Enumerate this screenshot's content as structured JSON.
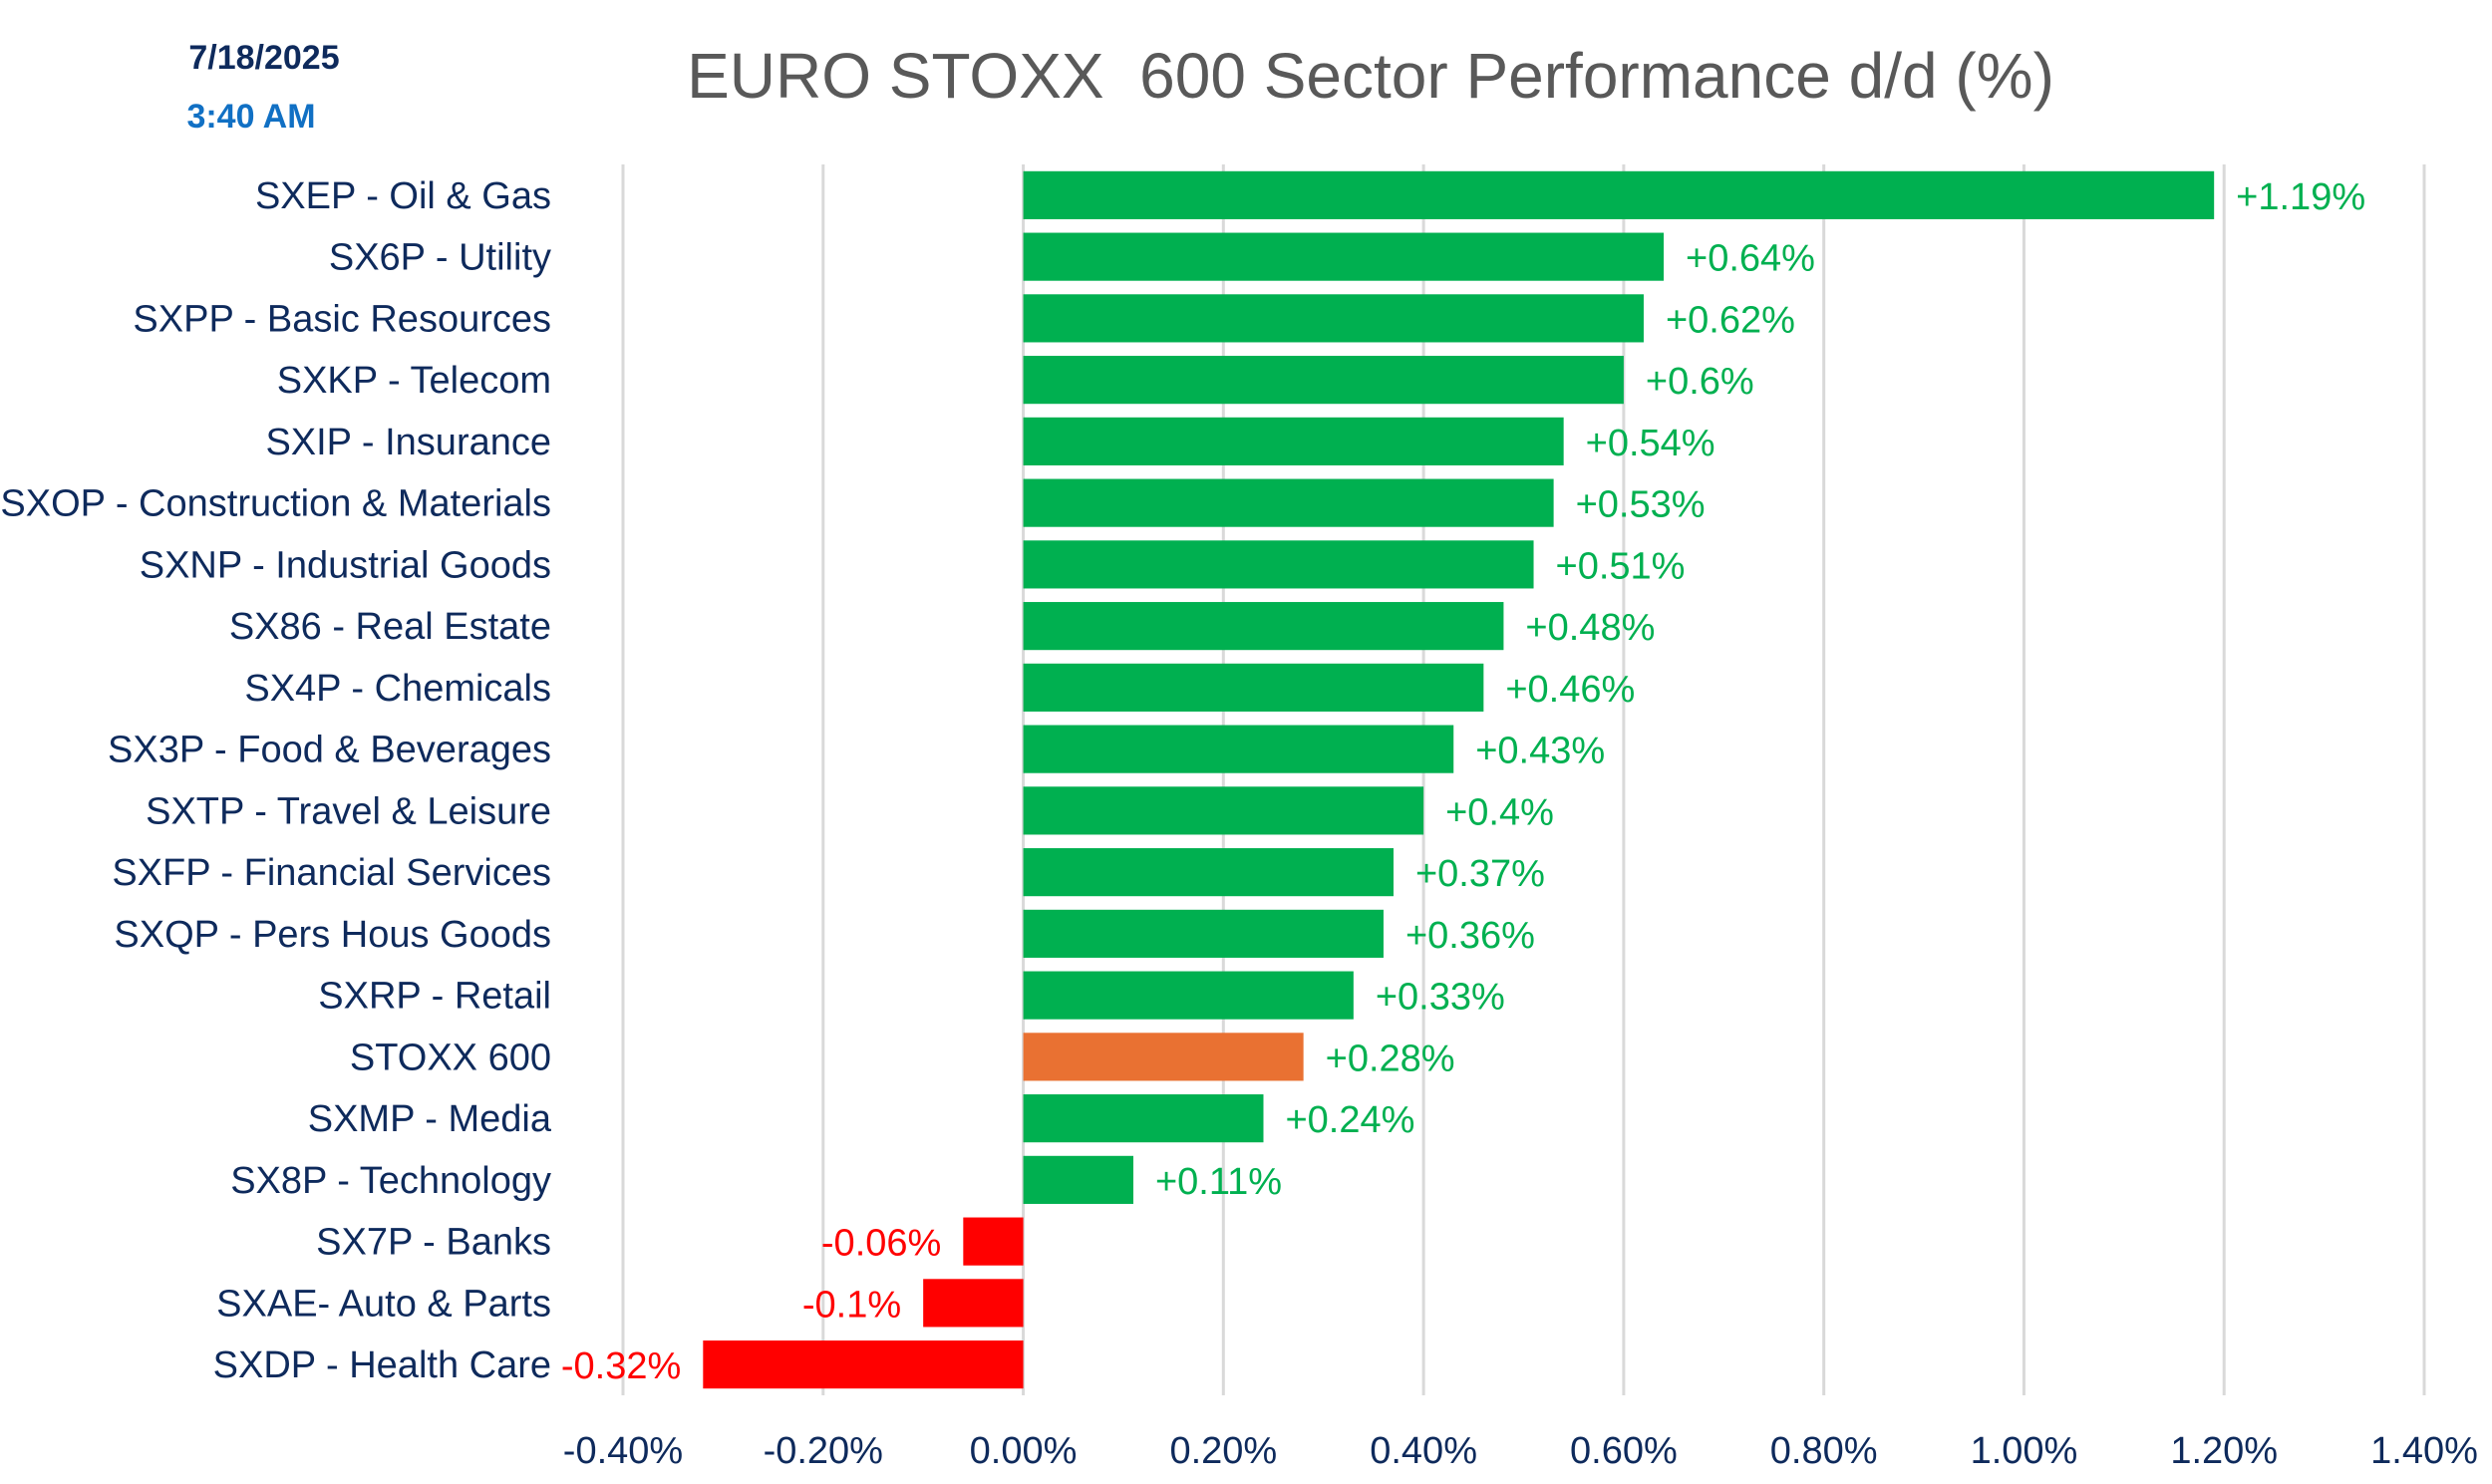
{
  "header": {
    "date": "7/18/2025",
    "time": "3:40 AM"
  },
  "colors": {
    "positive": "#00b050",
    "negative": "#ff0000",
    "benchmark": "#e97132",
    "positive_label": "#00b050",
    "negative_label": "#ff0000",
    "title": "#595959",
    "axis_text": "#0e2a5c",
    "time_text": "#1170c4",
    "gridline": "#d9d9d9"
  },
  "chart_data": {
    "type": "bar",
    "orientation": "horizontal",
    "title": "EURO STOXX  600 Sector Performance d/d (%)",
    "xlabel": "",
    "ylabel": "",
    "xlim": [
      -0.4,
      1.4
    ],
    "x_ticks": [
      -0.4,
      -0.2,
      0.0,
      0.2,
      0.4,
      0.6,
      0.8,
      1.0,
      1.2,
      1.4
    ],
    "x_tick_labels": [
      "-0.40%",
      "-0.20%",
      "0.00%",
      "0.20%",
      "0.40%",
      "0.60%",
      "0.80%",
      "1.00%",
      "1.20%",
      "1.40%"
    ],
    "grid": "vertical",
    "legend": "none",
    "categories": [
      "SXEP - Oil & Gas",
      "SX6P - Utility",
      "SXPP - Basic Resources",
      "SXKP - Telecom",
      "SXIP - Insurance",
      "SXOP - Construction & Materials",
      "SXNP - Industrial Goods",
      "SX86 - Real Estate",
      "SX4P - Chemicals",
      "SX3P - Food & Beverages",
      "SXTP - Travel & Leisure",
      "SXFP - Financial Services",
      "SXQP - Pers Hous Goods",
      "SXRP - Retail",
      "STOXX 600",
      "SXMP - Media",
      "SX8P - Technology",
      "SX7P - Banks",
      "SXAE- Auto & Parts",
      "SXDP - Health Care"
    ],
    "values": [
      1.19,
      0.64,
      0.62,
      0.6,
      0.54,
      0.53,
      0.51,
      0.48,
      0.46,
      0.43,
      0.4,
      0.37,
      0.36,
      0.33,
      0.28,
      0.24,
      0.11,
      -0.06,
      -0.1,
      -0.32
    ],
    "data_labels": [
      "+1.19%",
      "+0.64%",
      "+0.62%",
      "+0.6%",
      "+0.54%",
      "+0.53%",
      "+0.51%",
      "+0.48%",
      "+0.46%",
      "+0.43%",
      "+0.4%",
      "+0.37%",
      "+0.36%",
      "+0.33%",
      "+0.28%",
      "+0.24%",
      "+0.11%",
      "-0.06%",
      "-0.1%",
      "-0.32%"
    ],
    "highlight_category": "STOXX 600"
  }
}
